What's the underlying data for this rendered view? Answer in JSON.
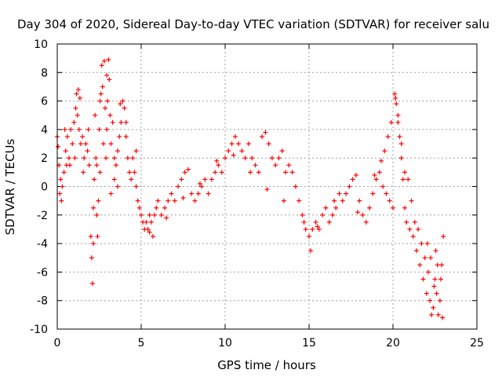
{
  "chart_data": {
    "type": "scatter",
    "title": "Day 304 of 2020, Sidereal Day-to-day VTEC variation (SDTVAR) for receiver salu",
    "xlabel": "GPS time / hours",
    "ylabel": "SDTVAR / TECUs",
    "xlim": [
      0,
      25
    ],
    "ylim": [
      -10,
      10
    ],
    "xticks": [
      0,
      5,
      10,
      15,
      20,
      25
    ],
    "xtick_labels": [
      "0",
      "5",
      "10",
      "15",
      "20",
      "25"
    ],
    "yticks": [
      -10,
      -8,
      -6,
      -4,
      -2,
      0,
      2,
      4,
      6,
      8,
      10
    ],
    "ytick_labels": [
      "-10",
      "-8",
      "-6",
      "-4",
      "-2",
      "0",
      "2",
      "4",
      "6",
      "8",
      "10"
    ],
    "grid": true,
    "marker": "+",
    "color": "#ff0000",
    "series": [
      {
        "name": "SDTVAR",
        "points": [
          [
            0.0,
            3.5
          ],
          [
            0.05,
            2.8
          ],
          [
            0.1,
            1.5
          ],
          [
            0.15,
            -0.5
          ],
          [
            0.2,
            0.5
          ],
          [
            0.3,
            0.0
          ],
          [
            0.4,
            1.0
          ],
          [
            0.5,
            2.5
          ],
          [
            0.55,
            1.5
          ],
          [
            0.6,
            3.5
          ],
          [
            0.7,
            2.0
          ],
          [
            0.8,
            4.0
          ],
          [
            0.9,
            3.0
          ],
          [
            1.0,
            4.5
          ],
          [
            1.1,
            5.5
          ],
          [
            1.15,
            6.5
          ],
          [
            1.2,
            5.0
          ],
          [
            1.25,
            6.8
          ],
          [
            1.3,
            4.0
          ],
          [
            1.4,
            3.0
          ],
          [
            1.5,
            3.5
          ],
          [
            1.6,
            2.0
          ],
          [
            1.7,
            3.0
          ],
          [
            1.8,
            2.5
          ],
          [
            1.9,
            1.5
          ],
          [
            2.0,
            -3.5
          ],
          [
            2.05,
            -5.0
          ],
          [
            2.1,
            -6.8
          ],
          [
            2.15,
            -4.0
          ],
          [
            2.2,
            0.5
          ],
          [
            2.25,
            5.0
          ],
          [
            2.3,
            2.0
          ],
          [
            2.35,
            -2.0
          ],
          [
            2.4,
            -3.5
          ],
          [
            2.45,
            -1.0
          ],
          [
            2.5,
            4.0
          ],
          [
            2.55,
            1.0
          ],
          [
            2.6,
            6.5
          ],
          [
            2.65,
            8.5
          ],
          [
            2.7,
            7.0
          ],
          [
            2.75,
            3.0
          ],
          [
            2.8,
            8.8
          ],
          [
            2.85,
            5.5
          ],
          [
            2.9,
            2.0
          ],
          [
            2.95,
            4.0
          ],
          [
            3.0,
            6.0
          ],
          [
            3.05,
            8.9
          ],
          [
            3.1,
            7.5
          ],
          [
            3.15,
            5.0
          ],
          [
            3.2,
            3.0
          ],
          [
            3.3,
            4.5
          ],
          [
            3.4,
            2.0
          ],
          [
            3.5,
            1.5
          ],
          [
            3.6,
            0.0
          ],
          [
            3.7,
            3.5
          ],
          [
            3.75,
            5.8
          ],
          [
            3.8,
            4.5
          ],
          [
            3.9,
            6.0
          ],
          [
            4.0,
            5.5
          ],
          [
            4.1,
            3.5
          ],
          [
            4.2,
            2.0
          ],
          [
            4.3,
            1.0
          ],
          [
            4.4,
            0.5
          ],
          [
            4.5,
            2.0
          ],
          [
            4.6,
            1.0
          ],
          [
            4.7,
            0.0
          ],
          [
            4.8,
            -1.0
          ],
          [
            4.9,
            -1.5
          ],
          [
            5.0,
            -2.0
          ],
          [
            5.1,
            -2.5
          ],
          [
            5.2,
            -3.0
          ],
          [
            5.3,
            -2.5
          ],
          [
            5.4,
            -3.0
          ],
          [
            5.5,
            -2.0
          ],
          [
            5.6,
            -2.5
          ],
          [
            5.7,
            -3.5
          ],
          [
            5.8,
            -2.0
          ],
          [
            5.9,
            -1.5
          ],
          [
            6.0,
            -1.0
          ],
          [
            6.2,
            -2.0
          ],
          [
            6.4,
            -1.5
          ],
          [
            6.6,
            -1.0
          ],
          [
            6.8,
            -0.5
          ],
          [
            7.0,
            -1.0
          ],
          [
            7.2,
            0.0
          ],
          [
            7.4,
            0.5
          ],
          [
            7.6,
            1.0
          ],
          [
            7.8,
            1.2
          ],
          [
            8.0,
            -0.5
          ],
          [
            8.2,
            -1.0
          ],
          [
            8.4,
            -0.5
          ],
          [
            8.6,
            0.0
          ],
          [
            8.8,
            0.5
          ],
          [
            9.0,
            -0.5
          ],
          [
            9.2,
            0.5
          ],
          [
            9.4,
            1.0
          ],
          [
            9.6,
            1.5
          ],
          [
            9.8,
            1.0
          ],
          [
            10.0,
            2.0
          ],
          [
            10.2,
            2.5
          ],
          [
            10.4,
            3.0
          ],
          [
            10.6,
            3.5
          ],
          [
            10.8,
            3.0
          ],
          [
            11.0,
            2.5
          ],
          [
            11.2,
            2.0
          ],
          [
            11.4,
            3.0
          ],
          [
            11.6,
            2.0
          ],
          [
            11.8,
            1.5
          ],
          [
            12.0,
            1.0
          ],
          [
            12.2,
            3.5
          ],
          [
            12.4,
            3.8
          ],
          [
            12.6,
            3.0
          ],
          [
            12.8,
            2.0
          ],
          [
            13.0,
            1.5
          ],
          [
            13.2,
            2.0
          ],
          [
            13.4,
            2.5
          ],
          [
            13.6,
            1.0
          ],
          [
            13.8,
            1.5
          ],
          [
            14.0,
            1.0
          ],
          [
            14.2,
            0.0
          ],
          [
            14.4,
            -1.0
          ],
          [
            14.6,
            -2.0
          ],
          [
            14.8,
            -3.0
          ],
          [
            15.0,
            -3.5
          ],
          [
            15.1,
            -4.5
          ],
          [
            15.2,
            -3.0
          ],
          [
            15.4,
            -2.5
          ],
          [
            15.6,
            -3.0
          ],
          [
            15.8,
            -2.0
          ],
          [
            16.0,
            -1.5
          ],
          [
            16.2,
            -2.5
          ],
          [
            16.4,
            -2.0
          ],
          [
            16.6,
            -1.5
          ],
          [
            16.8,
            -0.5
          ],
          [
            17.0,
            -1.0
          ],
          [
            17.2,
            -0.5
          ],
          [
            17.4,
            0.0
          ],
          [
            17.6,
            0.5
          ],
          [
            17.8,
            0.8
          ],
          [
            18.0,
            -1.0
          ],
          [
            18.2,
            -2.0
          ],
          [
            18.4,
            -2.5
          ],
          [
            18.6,
            -1.5
          ],
          [
            18.8,
            -0.5
          ],
          [
            19.0,
            0.5
          ],
          [
            19.2,
            1.0
          ],
          [
            19.4,
            0.0
          ],
          [
            19.6,
            -0.5
          ],
          [
            19.8,
            -1.0
          ],
          [
            20.0,
            -1.5
          ],
          [
            20.1,
            6.5
          ],
          [
            20.2,
            5.8
          ],
          [
            20.3,
            4.5
          ],
          [
            20.4,
            3.5
          ],
          [
            20.5,
            2.0
          ],
          [
            20.6,
            0.5
          ],
          [
            20.7,
            -1.5
          ],
          [
            20.8,
            -2.5
          ],
          [
            21.0,
            -3.0
          ],
          [
            21.2,
            -3.5
          ],
          [
            21.4,
            -4.5
          ],
          [
            21.6,
            -5.5
          ],
          [
            21.8,
            -6.5
          ],
          [
            22.0,
            -7.5
          ],
          [
            22.1,
            -6.0
          ],
          [
            22.2,
            -8.0
          ],
          [
            22.3,
            -9.0
          ],
          [
            22.4,
            -8.5
          ],
          [
            22.5,
            -6.5
          ],
          [
            22.6,
            -7.5
          ],
          [
            22.7,
            -9.0
          ],
          [
            22.8,
            -8.0
          ],
          [
            22.9,
            -5.5
          ],
          [
            23.0,
            -3.5
          ],
          [
            19.5,
            2.5
          ],
          [
            19.7,
            3.5
          ],
          [
            19.9,
            4.5
          ],
          [
            19.3,
            1.8
          ],
          [
            18.9,
            0.8
          ],
          [
            17.9,
            -1.8
          ],
          [
            16.5,
            -1.0
          ],
          [
            15.5,
            -2.8
          ],
          [
            14.7,
            -2.5
          ],
          [
            13.5,
            -1.0
          ],
          [
            12.5,
            -0.2
          ],
          [
            11.5,
            1.0
          ],
          [
            10.5,
            2.2
          ],
          [
            9.5,
            1.8
          ],
          [
            8.5,
            0.2
          ],
          [
            7.5,
            -0.8
          ],
          [
            6.5,
            -2.2
          ],
          [
            5.5,
            -3.2
          ],
          [
            4.7,
            2.5
          ],
          [
            4.1,
            4.5
          ],
          [
            3.6,
            2.5
          ],
          [
            3.4,
            0.5
          ],
          [
            3.2,
            -0.5
          ],
          [
            2.95,
            7.8
          ],
          [
            2.55,
            6.0
          ],
          [
            2.35,
            1.5
          ],
          [
            2.15,
            -1.5
          ],
          [
            1.85,
            4.0
          ],
          [
            1.55,
            1.0
          ],
          [
            1.35,
            6.2
          ],
          [
            1.05,
            2.0
          ],
          [
            0.75,
            1.5
          ],
          [
            0.45,
            4.0
          ],
          [
            0.25,
            -1.0
          ],
          [
            21.1,
            -1.0
          ],
          [
            21.3,
            -2.5
          ],
          [
            21.5,
            -3.0
          ],
          [
            21.7,
            -4.0
          ],
          [
            21.9,
            -5.0
          ],
          [
            22.05,
            -4.0
          ],
          [
            22.25,
            -5.0
          ],
          [
            22.45,
            -7.0
          ],
          [
            22.65,
            -5.5
          ],
          [
            22.85,
            -6.5
          ],
          [
            22.95,
            -9.2
          ],
          [
            22.55,
            -4.5
          ],
          [
            20.9,
            0.5
          ],
          [
            20.7,
            1.0
          ],
          [
            20.5,
            3.0
          ],
          [
            20.3,
            5.0
          ],
          [
            20.15,
            6.2
          ]
        ]
      }
    ]
  }
}
